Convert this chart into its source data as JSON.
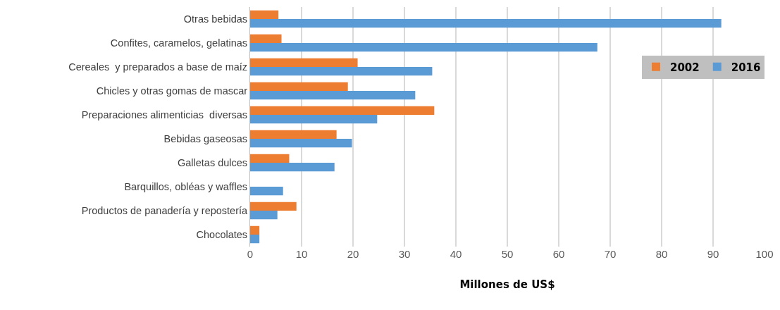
{
  "chart_data": {
    "type": "bar",
    "orientation": "horizontal",
    "xlabel": "Millones de US$",
    "categories": [
      "Otras bebidas",
      "Confites, caramelos, gelatinas",
      "Cereales  y preparados a base de maíz",
      "Chicles y otras gomas de mascar",
      "Preparaciones alimenticias  diversas",
      "Bebidas gaseosas",
      "Galletas dulces",
      "Barquillos, obléas y waffles",
      "Productos de panadería y repostería",
      "Chocolates"
    ],
    "series": [
      {
        "name": "2002",
        "color": "#ed7d31",
        "values": [
          5.5,
          6.1,
          20.9,
          19,
          35.8,
          16.8,
          7.6,
          null,
          9,
          1.8
        ]
      },
      {
        "name": "2016",
        "color": "#5b9bd5",
        "values": [
          91.6,
          67.5,
          35.4,
          32.1,
          24.7,
          19.8,
          16.4,
          6.4,
          5.3,
          1.8
        ]
      }
    ],
    "xlim": [
      0,
      100
    ],
    "xticks": [
      0,
      10,
      20,
      30,
      40,
      50,
      60,
      70,
      80,
      90,
      100
    ],
    "grid": "x",
    "legend": "right"
  }
}
